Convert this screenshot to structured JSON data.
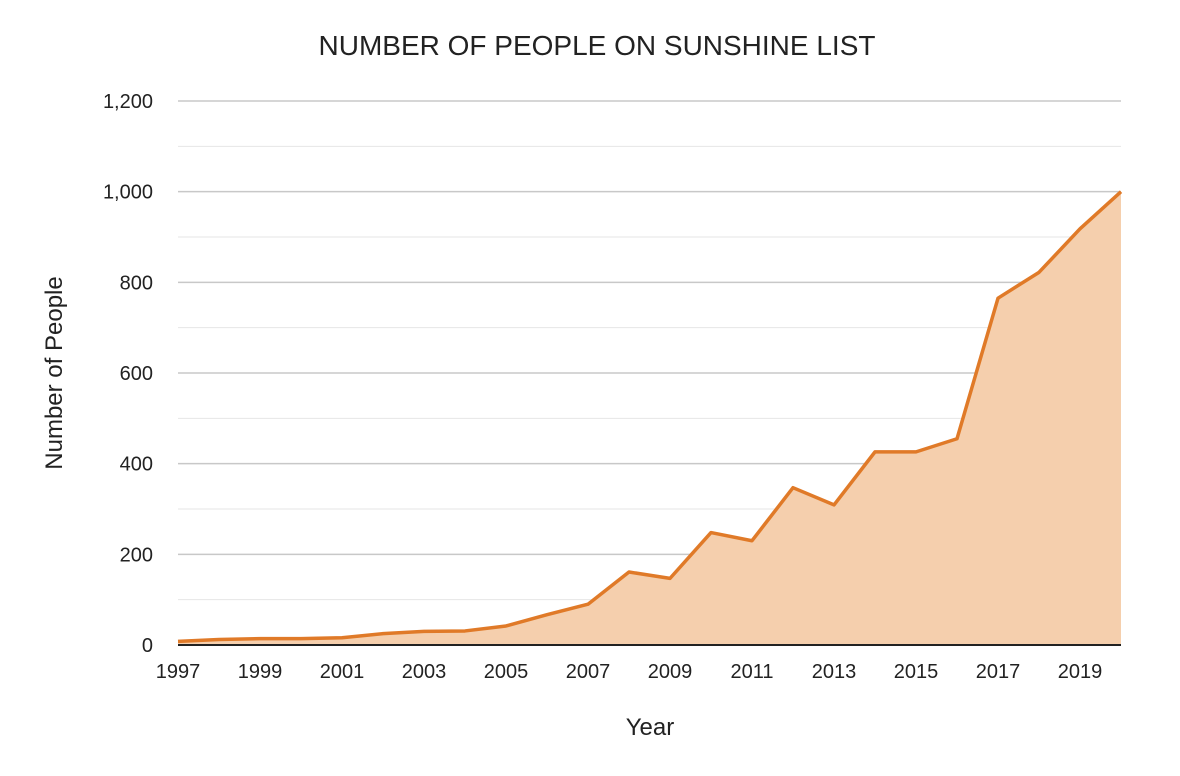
{
  "chart_data": {
    "type": "area",
    "title": "NUMBER OF PEOPLE ON SUNSHINE LIST",
    "xlabel": "Year",
    "ylabel": "Number of People",
    "x": [
      1997,
      1998,
      1999,
      2000,
      2001,
      2002,
      2003,
      2004,
      2005,
      2006,
      2007,
      2008,
      2009,
      2010,
      2011,
      2012,
      2013,
      2014,
      2015,
      2016,
      2017,
      2018,
      2019,
      2020
    ],
    "series": [
      {
        "name": "",
        "values": [
          8,
          12,
          14,
          14,
          16,
          25,
          30,
          31,
          42,
          67,
          90,
          161,
          147,
          248,
          230,
          347,
          309,
          426,
          426,
          455,
          765,
          822,
          918,
          1000
        ]
      }
    ],
    "xticks": [
      "1997",
      "1999",
      "2001",
      "2003",
      "2005",
      "2007",
      "2009",
      "2011",
      "2013",
      "2015",
      "2017",
      "2019"
    ],
    "yticks": [
      "0",
      "200",
      "400",
      "600",
      "800",
      "1,000",
      "1,200"
    ],
    "xlim": [
      1997,
      2020
    ],
    "ylim": [
      0,
      1200
    ],
    "grid": true,
    "legend": "none",
    "colors": {
      "line": "#e07a28",
      "fill": "#f5cfad"
    }
  }
}
